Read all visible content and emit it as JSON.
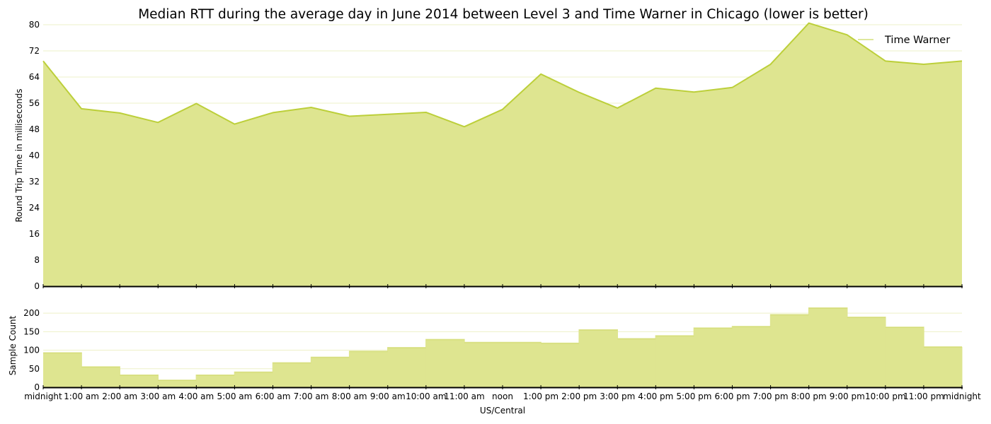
{
  "chart_data": [
    {
      "type": "area",
      "title": "Median RTT during the average day in June 2014 between Level 3 and Time Warner in Chicago (lower is better)",
      "ylabel": "Round Trip Time in milliseconds",
      "ylim": [
        0,
        80
      ],
      "yticks": [
        0,
        8,
        16,
        24,
        32,
        40,
        48,
        56,
        64,
        72,
        80
      ],
      "x": [
        "midnight",
        "1:00 am",
        "2:00 am",
        "3:00 am",
        "4:00 am",
        "5:00 am",
        "6:00 am",
        "7:00 am",
        "8:00 am",
        "9:00 am",
        "10:00 am",
        "11:00 am",
        "noon",
        "1:00 pm",
        "2:00 pm",
        "3:00 pm",
        "4:00 pm",
        "5:00 pm",
        "6:00 pm",
        "7:00 pm",
        "8:00 pm",
        "9:00 pm",
        "10:00 pm",
        "11:00 pm",
        "midnight"
      ],
      "series": [
        {
          "name": "Time Warner",
          "values": [
            68.9,
            54.3,
            53.0,
            50.1,
            55.9,
            49.6,
            53.1,
            54.7,
            52.0,
            52.6,
            53.2,
            48.8,
            54.1,
            64.9,
            59.3,
            54.5,
            60.6,
            59.4,
            60.8,
            67.9,
            80.5,
            76.9,
            68.9,
            67.9,
            68.9
          ]
        }
      ],
      "legend": "top-right",
      "grid": true
    },
    {
      "type": "bar",
      "ylabel": "Sample Count",
      "xlabel": "US/Central",
      "ylim": [
        0,
        225
      ],
      "yticks": [
        0,
        50,
        100,
        150,
        200
      ],
      "categories": [
        "midnight",
        "1:00 am",
        "2:00 am",
        "3:00 am",
        "4:00 am",
        "5:00 am",
        "6:00 am",
        "7:00 am",
        "8:00 am",
        "9:00 am",
        "10:00 am",
        "11:00 am",
        "noon",
        "1:00 pm",
        "2:00 pm",
        "3:00 pm",
        "4:00 pm",
        "5:00 pm",
        "6:00 pm",
        "7:00 pm",
        "8:00 pm",
        "9:00 pm",
        "10:00 pm",
        "11:00 pm"
      ],
      "values": [
        93,
        55,
        33,
        19,
        33,
        41,
        66,
        81,
        97,
        107,
        129,
        121,
        121,
        119,
        155,
        131,
        139,
        160,
        164,
        196,
        214,
        189,
        162,
        109
      ],
      "x_tick_labels": [
        "midnight",
        "1:00 am",
        "2:00 am",
        "3:00 am",
        "4:00 am",
        "5:00 am",
        "6:00 am",
        "7:00 am",
        "8:00 am",
        "9:00 am",
        "10:00 am",
        "11:00 am",
        "noon",
        "1:00 pm",
        "2:00 pm",
        "3:00 pm",
        "4:00 pm",
        "5:00 pm",
        "6:00 pm",
        "7:00 pm",
        "8:00 pm",
        "9:00 pm",
        "10:00 pm",
        "11:00 pm",
        "midnight"
      ]
    }
  ],
  "colors": {
    "line": "#bccf3a",
    "fill": "#dee590",
    "grid": "#eef1c8",
    "axis": "#000000"
  }
}
